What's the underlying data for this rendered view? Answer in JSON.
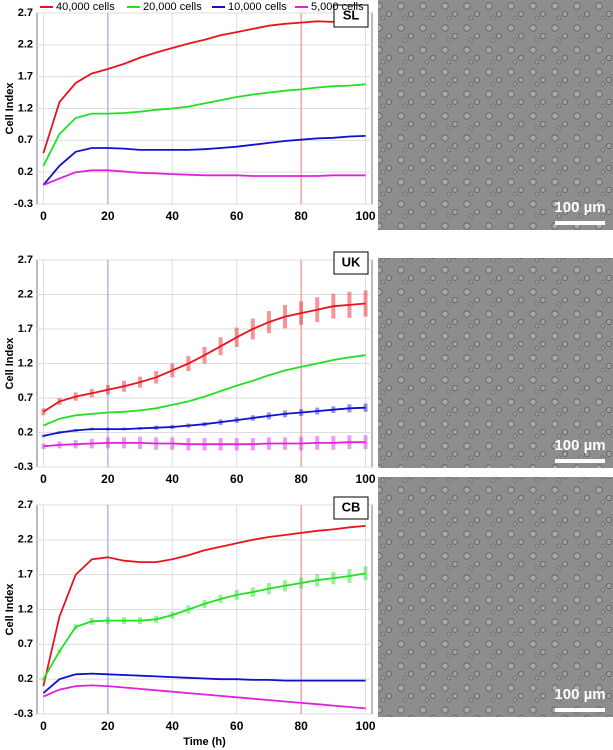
{
  "chart_data": [
    {
      "type": "line",
      "panel_label": "SL",
      "y_label": "Cell Index",
      "legend": "top",
      "x": [
        0,
        5,
        10,
        15,
        20,
        25,
        30,
        35,
        40,
        45,
        50,
        55,
        60,
        65,
        70,
        75,
        80,
        85,
        90,
        95,
        100
      ],
      "xlim": [
        -2,
        102
      ],
      "xticks": [
        0,
        20,
        40,
        60,
        80,
        100
      ],
      "ylim": [
        -0.3,
        2.7
      ],
      "yticks": [
        -0.3,
        0.2,
        0.7,
        1.2,
        1.7,
        2.2,
        2.7
      ],
      "grid": true,
      "markers": [
        {
          "x": 20,
          "color": "#9a9ae6"
        },
        {
          "x": 80,
          "color": "#f08080"
        }
      ],
      "series": [
        {
          "name": "40,000 cells",
          "color": "#e8141c",
          "values": [
            0.5,
            1.3,
            1.6,
            1.75,
            1.82,
            1.9,
            2.0,
            2.08,
            2.15,
            2.22,
            2.28,
            2.35,
            2.4,
            2.45,
            2.5,
            2.53,
            2.55,
            2.57,
            2.56,
            2.52,
            2.5
          ]
        },
        {
          "name": "20,000 cells",
          "color": "#22e022",
          "values": [
            0.3,
            0.8,
            1.05,
            1.12,
            1.12,
            1.13,
            1.15,
            1.18,
            1.2,
            1.23,
            1.28,
            1.33,
            1.38,
            1.42,
            1.45,
            1.48,
            1.5,
            1.53,
            1.55,
            1.56,
            1.58
          ]
        },
        {
          "name": "10,000 cells",
          "color": "#1010d0",
          "values": [
            0.0,
            0.3,
            0.52,
            0.58,
            0.58,
            0.57,
            0.55,
            0.55,
            0.55,
            0.55,
            0.56,
            0.58,
            0.6,
            0.63,
            0.66,
            0.69,
            0.71,
            0.73,
            0.74,
            0.76,
            0.77
          ]
        },
        {
          "name": "5,000 cells",
          "color": "#e020e0",
          "values": [
            0.0,
            0.1,
            0.2,
            0.23,
            0.23,
            0.21,
            0.19,
            0.18,
            0.17,
            0.16,
            0.15,
            0.15,
            0.15,
            0.14,
            0.14,
            0.14,
            0.14,
            0.14,
            0.15,
            0.15,
            0.15
          ]
        }
      ]
    },
    {
      "type": "line",
      "panel_label": "UK",
      "y_label": "Cell Index",
      "x": [
        0,
        5,
        10,
        15,
        20,
        25,
        30,
        35,
        40,
        45,
        50,
        55,
        60,
        65,
        70,
        75,
        80,
        85,
        90,
        95,
        100
      ],
      "xlim": [
        -2,
        102
      ],
      "xticks": [
        0,
        20,
        40,
        60,
        80,
        100
      ],
      "ylim": [
        -0.3,
        2.7
      ],
      "yticks": [
        -0.3,
        0.2,
        0.7,
        1.2,
        1.7,
        2.2,
        2.7
      ],
      "grid": true,
      "markers": [
        {
          "x": 20,
          "color": "#9a9ae6"
        },
        {
          "x": 80,
          "color": "#f08080"
        }
      ],
      "series": [
        {
          "color": "#e8141c",
          "values": [
            0.5,
            0.65,
            0.72,
            0.77,
            0.82,
            0.87,
            0.93,
            1.0,
            1.1,
            1.2,
            1.32,
            1.45,
            1.58,
            1.7,
            1.8,
            1.88,
            1.93,
            1.98,
            2.03,
            2.05,
            2.07
          ],
          "errors": [
            0.05,
            0.05,
            0.06,
            0.06,
            0.07,
            0.08,
            0.08,
            0.09,
            0.1,
            0.11,
            0.12,
            0.13,
            0.14,
            0.15,
            0.16,
            0.17,
            0.17,
            0.18,
            0.18,
            0.19,
            0.19
          ]
        },
        {
          "color": "#22e022",
          "values": [
            0.3,
            0.4,
            0.45,
            0.47,
            0.49,
            0.5,
            0.52,
            0.55,
            0.6,
            0.65,
            0.72,
            0.8,
            0.88,
            0.95,
            1.03,
            1.1,
            1.15,
            1.2,
            1.25,
            1.29,
            1.32
          ]
        },
        {
          "color": "#1010d0",
          "values": [
            0.15,
            0.2,
            0.23,
            0.25,
            0.25,
            0.25,
            0.26,
            0.27,
            0.28,
            0.3,
            0.32,
            0.35,
            0.38,
            0.41,
            0.44,
            0.47,
            0.49,
            0.51,
            0.53,
            0.55,
            0.56
          ],
          "errors": [
            0.02,
            0.02,
            0.02,
            0.02,
            0.02,
            0.02,
            0.02,
            0.03,
            0.03,
            0.03,
            0.03,
            0.04,
            0.04,
            0.04,
            0.05,
            0.05,
            0.05,
            0.05,
            0.05,
            0.06,
            0.06
          ]
        },
        {
          "color": "#e020e0",
          "values": [
            0.0,
            0.02,
            0.03,
            0.04,
            0.05,
            0.05,
            0.05,
            0.04,
            0.04,
            0.03,
            0.03,
            0.03,
            0.03,
            0.03,
            0.04,
            0.04,
            0.04,
            0.05,
            0.05,
            0.06,
            0.06
          ],
          "errors": [
            0.04,
            0.05,
            0.06,
            0.07,
            0.08,
            0.08,
            0.09,
            0.09,
            0.09,
            0.09,
            0.09,
            0.09,
            0.09,
            0.09,
            0.09,
            0.09,
            0.1,
            0.1,
            0.1,
            0.1,
            0.1
          ]
        }
      ]
    },
    {
      "type": "line",
      "panel_label": "CB",
      "y_label": "Cell Index",
      "x_label": "Time (h)",
      "x": [
        0,
        5,
        10,
        15,
        20,
        25,
        30,
        35,
        40,
        45,
        50,
        55,
        60,
        65,
        70,
        75,
        80,
        85,
        90,
        95,
        100
      ],
      "xlim": [
        -2,
        102
      ],
      "xticks": [
        0,
        20,
        40,
        60,
        80,
        100
      ],
      "ylim": [
        -0.3,
        2.7
      ],
      "yticks": [
        -0.3,
        0.2,
        0.7,
        1.2,
        1.7,
        2.2,
        2.7
      ],
      "grid": true,
      "markers": [
        {
          "x": 20,
          "color": "#9a9ae6"
        },
        {
          "x": 80,
          "color": "#f08080"
        }
      ],
      "series": [
        {
          "color": "#e8141c",
          "values": [
            0.1,
            1.1,
            1.7,
            1.92,
            1.95,
            1.9,
            1.88,
            1.88,
            1.92,
            1.98,
            2.05,
            2.1,
            2.15,
            2.2,
            2.24,
            2.27,
            2.3,
            2.33,
            2.35,
            2.38,
            2.4
          ]
        },
        {
          "color": "#22e022",
          "values": [
            0.2,
            0.6,
            0.95,
            1.03,
            1.04,
            1.04,
            1.04,
            1.06,
            1.12,
            1.2,
            1.28,
            1.35,
            1.41,
            1.45,
            1.5,
            1.54,
            1.58,
            1.62,
            1.65,
            1.68,
            1.72
          ],
          "errors": [
            0.02,
            0.03,
            0.04,
            0.05,
            0.05,
            0.05,
            0.05,
            0.05,
            0.05,
            0.06,
            0.06,
            0.06,
            0.07,
            0.07,
            0.08,
            0.08,
            0.08,
            0.09,
            0.09,
            0.1,
            0.1
          ]
        },
        {
          "color": "#1010d0",
          "values": [
            0.0,
            0.2,
            0.27,
            0.28,
            0.27,
            0.26,
            0.25,
            0.24,
            0.23,
            0.22,
            0.21,
            0.2,
            0.2,
            0.19,
            0.19,
            0.18,
            0.18,
            0.18,
            0.18,
            0.18,
            0.18
          ]
        },
        {
          "color": "#e020e0",
          "values": [
            -0.05,
            0.05,
            0.1,
            0.11,
            0.1,
            0.08,
            0.06,
            0.04,
            0.02,
            0.0,
            -0.02,
            -0.04,
            -0.06,
            -0.08,
            -0.1,
            -0.12,
            -0.14,
            -0.16,
            -0.18,
            -0.2,
            -0.22
          ]
        }
      ]
    }
  ],
  "images": [
    {
      "scale_bar": "100 µm"
    },
    {
      "scale_bar": "100 µm"
    },
    {
      "scale_bar": "100 µm"
    }
  ]
}
